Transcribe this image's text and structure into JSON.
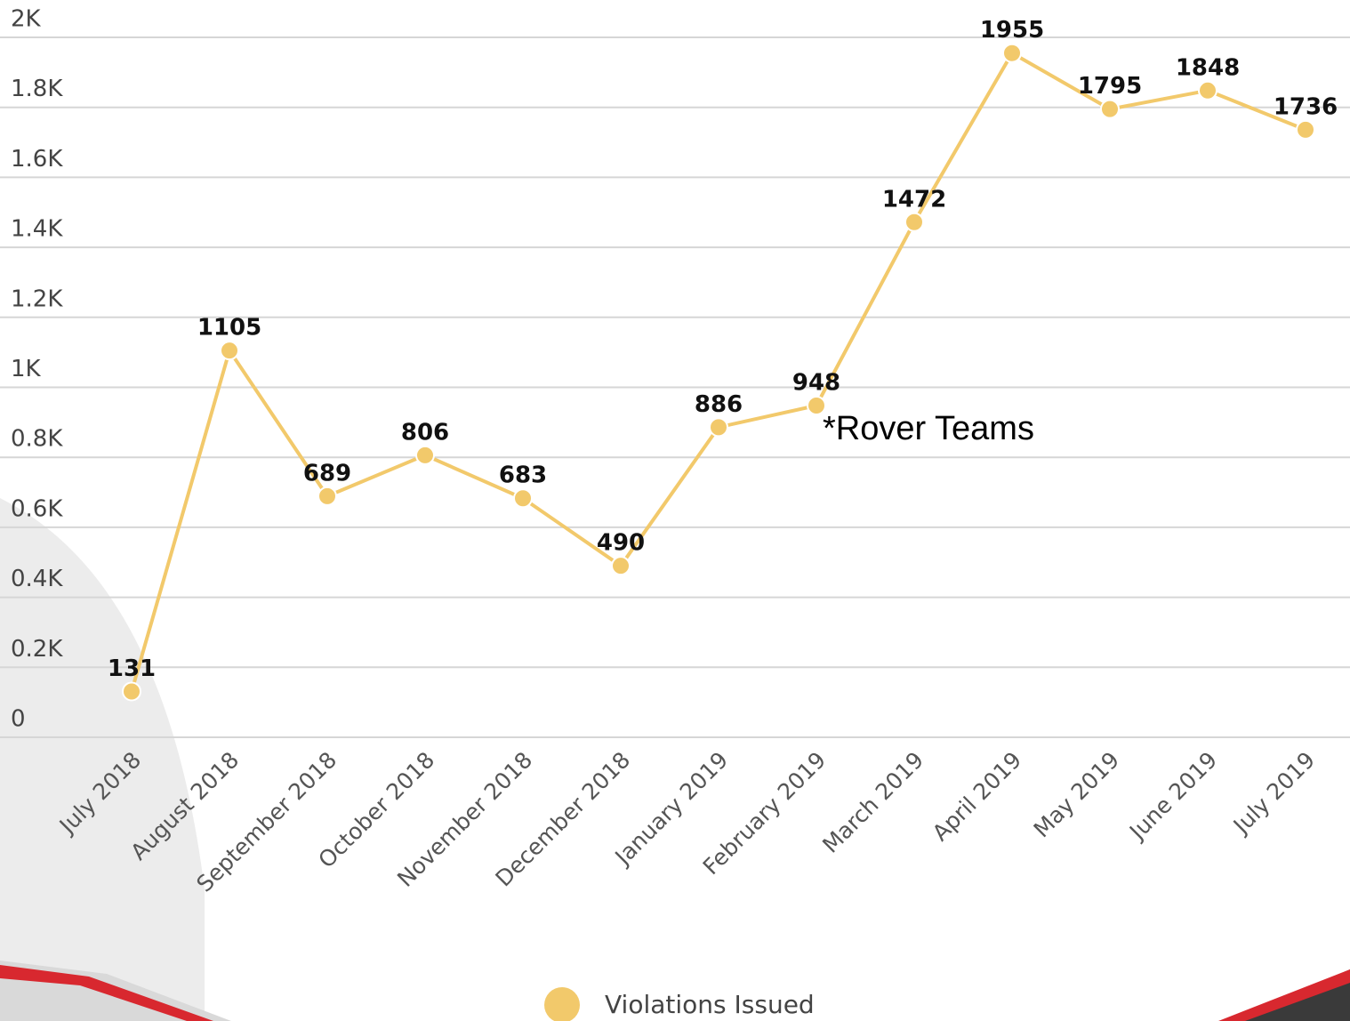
{
  "chart_data": {
    "type": "line",
    "categories": [
      "July 2018",
      "August 2018",
      "September 2018",
      "October 2018",
      "November 2018",
      "December 2018",
      "January 2019",
      "February 2019",
      "March 2019",
      "April 2019",
      "May 2019",
      "June 2019",
      "July 2019"
    ],
    "series": [
      {
        "name": "Violations Issued",
        "color": "#f2c96b",
        "values": [
          131,
          1105,
          689,
          806,
          683,
          490,
          886,
          948,
          1472,
          1955,
          1795,
          1848,
          1736
        ]
      }
    ],
    "ylim": [
      0,
      2000
    ],
    "yticks": [
      0,
      {
        "value": 200,
        "label": "0.2K"
      },
      {
        "value": 400,
        "label": "0.4K"
      },
      {
        "value": 600,
        "label": "0.6K"
      },
      {
        "value": 800,
        "label": "0.8K"
      },
      {
        "value": 1000,
        "label": "1K"
      },
      {
        "value": 1200,
        "label": "1.2K"
      },
      {
        "value": 1400,
        "label": "1.4K"
      },
      {
        "value": 1600,
        "label": "1.6K"
      },
      {
        "value": 1800,
        "label": "1.8K"
      },
      {
        "value": 2000,
        "label": "2K"
      }
    ],
    "grid": true,
    "annotation": "*Rover Teams"
  }
}
